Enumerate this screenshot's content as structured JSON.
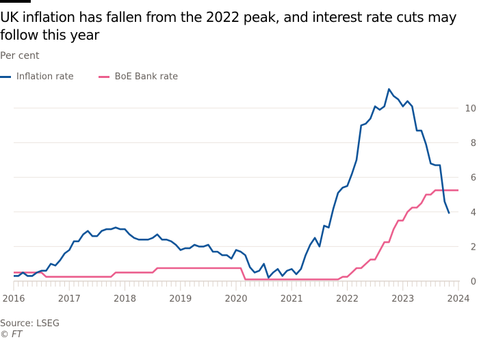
{
  "title": "UK inflation has fallen from the 2022 peak, and interest rate cuts may follow this year",
  "subtitle": "Per cent",
  "source": "Source: LSEG",
  "credit": "© FT",
  "chart_data": {
    "type": "line",
    "ylabel": "Per cent",
    "ylim": [
      0,
      11
    ],
    "yticks": [
      0,
      2,
      4,
      6,
      8,
      10
    ],
    "xlim": [
      2016,
      2024
    ],
    "xticks": [
      "2016",
      "2017",
      "2018",
      "2019",
      "2020",
      "2021",
      "2022",
      "2023",
      "2024"
    ],
    "x_start": "2016-01",
    "x_frequency": "monthly",
    "grid": true,
    "y_axis_side": "right",
    "legend": "top-left",
    "series": [
      {
        "name": "Inflation rate",
        "color": "#0f5499",
        "values": [
          0.3,
          0.3,
          0.5,
          0.3,
          0.3,
          0.5,
          0.6,
          0.6,
          1.0,
          0.9,
          1.2,
          1.6,
          1.8,
          2.3,
          2.3,
          2.7,
          2.9,
          2.6,
          2.6,
          2.9,
          3.0,
          3.0,
          3.1,
          3.0,
          3.0,
          2.7,
          2.5,
          2.4,
          2.4,
          2.4,
          2.5,
          2.7,
          2.4,
          2.4,
          2.3,
          2.1,
          1.8,
          1.9,
          1.9,
          2.1,
          2.0,
          2.0,
          2.1,
          1.7,
          1.7,
          1.5,
          1.5,
          1.3,
          1.8,
          1.7,
          1.5,
          0.8,
          0.5,
          0.6,
          1.0,
          0.2,
          0.5,
          0.7,
          0.3,
          0.6,
          0.7,
          0.4,
          0.7,
          1.5,
          2.1,
          2.5,
          2.0,
          3.2,
          3.1,
          4.2,
          5.1,
          5.4,
          5.5,
          6.2,
          7.0,
          9.0,
          9.1,
          9.4,
          10.1,
          9.9,
          10.1,
          11.1,
          10.7,
          10.5,
          10.1,
          10.4,
          10.1,
          8.7,
          8.7,
          7.9,
          6.8,
          6.7,
          6.7,
          4.6,
          3.9
        ]
      },
      {
        "name": "BoE Bank rate",
        "color": "#eb5e8d",
        "values": [
          0.5,
          0.5,
          0.5,
          0.5,
          0.5,
          0.5,
          0.5,
          0.25,
          0.25,
          0.25,
          0.25,
          0.25,
          0.25,
          0.25,
          0.25,
          0.25,
          0.25,
          0.25,
          0.25,
          0.25,
          0.25,
          0.25,
          0.5,
          0.5,
          0.5,
          0.5,
          0.5,
          0.5,
          0.5,
          0.5,
          0.5,
          0.75,
          0.75,
          0.75,
          0.75,
          0.75,
          0.75,
          0.75,
          0.75,
          0.75,
          0.75,
          0.75,
          0.75,
          0.75,
          0.75,
          0.75,
          0.75,
          0.75,
          0.75,
          0.75,
          0.1,
          0.1,
          0.1,
          0.1,
          0.1,
          0.1,
          0.1,
          0.1,
          0.1,
          0.1,
          0.1,
          0.1,
          0.1,
          0.1,
          0.1,
          0.1,
          0.1,
          0.1,
          0.1,
          0.1,
          0.1,
          0.25,
          0.25,
          0.5,
          0.75,
          0.75,
          1.0,
          1.25,
          1.25,
          1.75,
          2.25,
          2.25,
          3.0,
          3.5,
          3.5,
          4.0,
          4.25,
          4.25,
          4.5,
          5.0,
          5.0,
          5.25,
          5.25,
          5.25,
          5.25,
          5.25,
          5.25
        ]
      }
    ]
  }
}
